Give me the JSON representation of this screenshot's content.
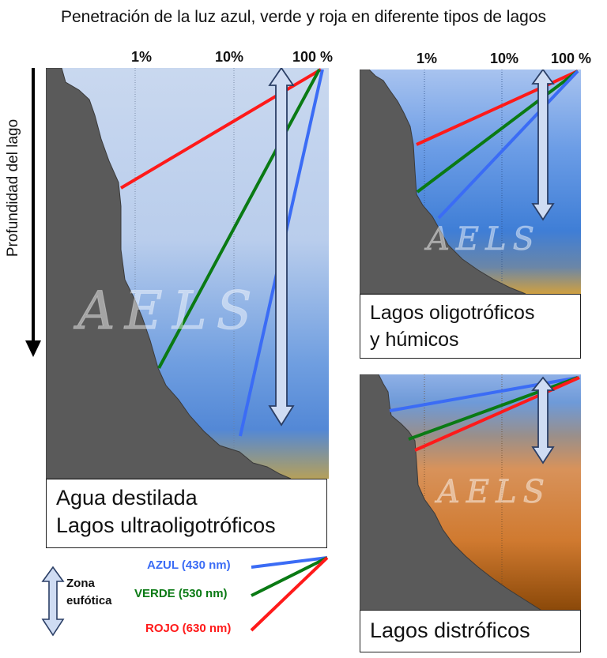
{
  "title": "Penetración de la luz azul, verde y roja en diferente tipos de lagos",
  "y_axis_label": "Profundidad del lago",
  "percent_ticks": [
    "1%",
    "10%",
    "100 %"
  ],
  "watermark": "AELS",
  "panels": [
    {
      "label_lines": [
        "Agua destilada",
        "Lagos ultraoligotróficos"
      ],
      "water_type": "clear"
    },
    {
      "label_lines": [
        "Lagos oligotróficos",
        "y húmicos"
      ],
      "water_type": "blue"
    },
    {
      "label_lines": [
        "Lagos distróficos"
      ],
      "water_type": "brown"
    }
  ],
  "legend": {
    "zone_label_lines": [
      "Zona",
      "eufótica"
    ],
    "items": [
      {
        "label": "AZUL (430 nm)",
        "color": "#3b6cf5"
      },
      {
        "label": "VERDE (530 nm)",
        "color": "#0a7a14"
      },
      {
        "label": "ROJO (630 nm)",
        "color": "#ff1a1a"
      }
    ]
  },
  "colors": {
    "blue_line": "#3b6cf5",
    "green_line": "#0a7a14",
    "red_line": "#ff1a1a",
    "lake_bed": "#5a5a5a",
    "arrow_fill": "#cfdcf3"
  }
}
